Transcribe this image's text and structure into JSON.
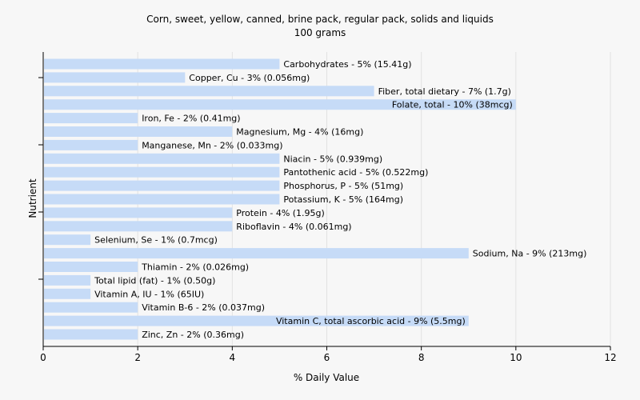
{
  "chart_data": {
    "type": "bar",
    "orientation": "horizontal",
    "title": "Corn, sweet, yellow, canned, brine pack, regular pack, solids and liquids",
    "subtitle": "100 grams",
    "xlabel": "% Daily Value",
    "ylabel": "Nutrient",
    "xlim": [
      0,
      12
    ],
    "xticks": [
      0,
      2,
      4,
      6,
      8,
      10,
      12
    ],
    "grid": true,
    "bar_color": "#c6dbf7",
    "categories": [
      "Carbohydrates",
      "Copper, Cu",
      "Fiber, total dietary",
      "Folate, total",
      "Iron, Fe",
      "Magnesium, Mg",
      "Manganese, Mn",
      "Niacin",
      "Pantothenic acid",
      "Phosphorus, P",
      "Potassium, K",
      "Protein",
      "Riboflavin",
      "Selenium, Se",
      "Sodium, Na",
      "Thiamin",
      "Total lipid (fat)",
      "Vitamin A, IU",
      "Vitamin B-6",
      "Vitamin C, total ascorbic acid",
      "Zinc, Zn"
    ],
    "values": [
      5,
      3,
      7,
      10,
      2,
      4,
      2,
      5,
      5,
      5,
      5,
      4,
      4,
      1,
      9,
      2,
      1,
      1,
      2,
      9,
      2
    ],
    "labels": [
      "Carbohydrates - 5% (15.41g)",
      "Copper, Cu - 3% (0.056mg)",
      "Fiber, total dietary - 7% (1.7g)",
      "Folate, total - 10% (38mcg)",
      "Iron, Fe - 2% (0.41mg)",
      "Magnesium, Mg - 4% (16mg)",
      "Manganese, Mn - 2% (0.033mg)",
      "Niacin - 5% (0.939mg)",
      "Pantothenic acid - 5% (0.522mg)",
      "Phosphorus, P - 5% (51mg)",
      "Potassium, K - 5% (164mg)",
      "Protein - 4% (1.95g)",
      "Riboflavin - 4% (0.061mg)",
      "Selenium, Se - 1% (0.7mcg)",
      "Sodium, Na - 9% (213mg)",
      "Thiamin - 2% (0.026mg)",
      "Total lipid (fat) - 1% (0.50g)",
      "Vitamin A, IU - 1% (65IU)",
      "Vitamin B-6 - 2% (0.037mg)",
      "Vitamin C, total ascorbic acid - 9% (5.5mg)",
      "Zinc, Zn - 2% (0.36mg)"
    ]
  }
}
